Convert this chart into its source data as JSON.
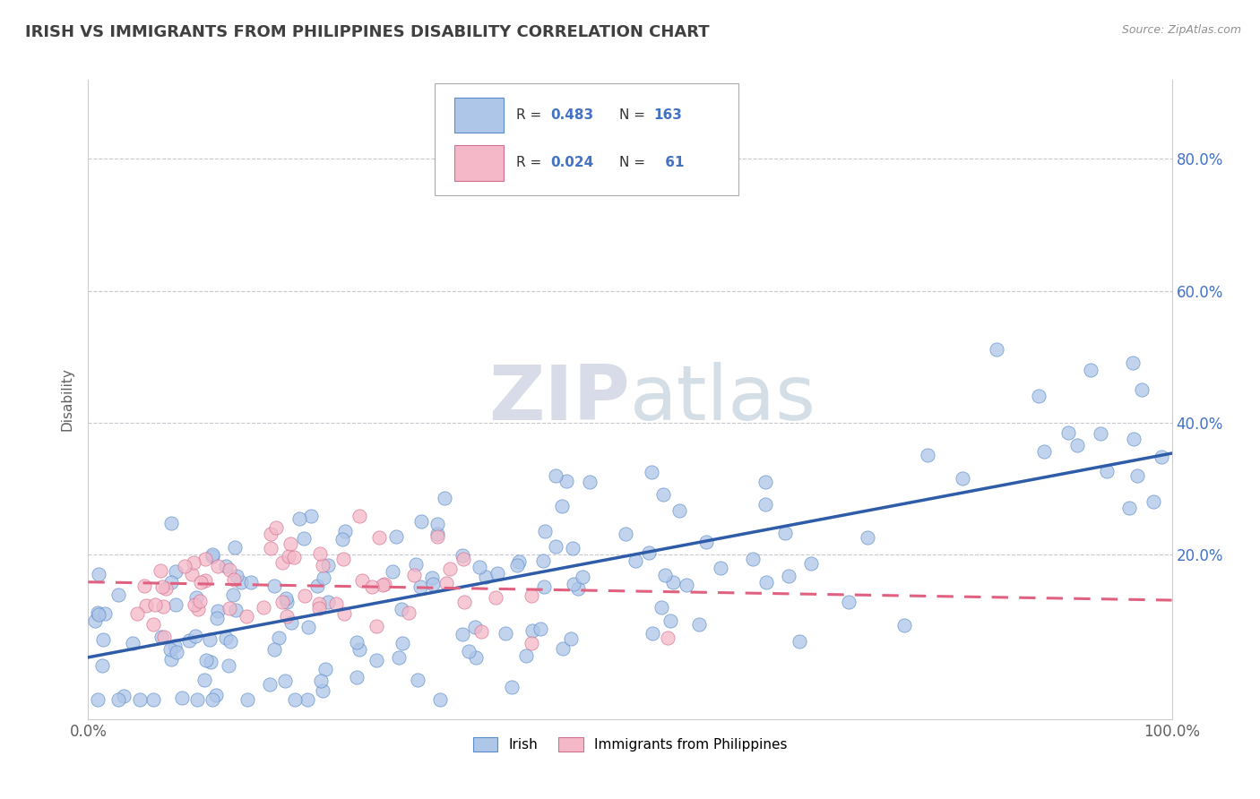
{
  "title": "IRISH VS IMMIGRANTS FROM PHILIPPINES DISABILITY CORRELATION CHART",
  "source": "Source: ZipAtlas.com",
  "ylabel": "Disability",
  "xlim": [
    0,
    1
  ],
  "ylim": [
    -0.05,
    0.92
  ],
  "xticks": [
    0.0,
    0.2,
    0.4,
    0.6,
    0.8,
    1.0
  ],
  "xticklabels": [
    "0.0%",
    "",
    "",
    "",
    "",
    "100.0%"
  ],
  "yticks": [
    0.0,
    0.2,
    0.4,
    0.6,
    0.8
  ],
  "yticklabels_right": [
    "",
    "20.0%",
    "40.0%",
    "60.0%",
    "80.0%"
  ],
  "irish_R": 0.483,
  "irish_N": 163,
  "phil_R": 0.024,
  "phil_N": 61,
  "irish_color": "#aec6e8",
  "irish_edge_color": "#5b8cc8",
  "phil_color": "#f4b8c8",
  "phil_edge_color": "#d07090",
  "irish_line_color": "#2e5ca8",
  "phil_line_color": "#e06080",
  "background_color": "#ffffff",
  "grid_color": "#c8c8d0",
  "watermark_color": "#d8dce8",
  "legend_color": "#4472c4",
  "title_color": "#404040",
  "source_color": "#909090",
  "ylabel_color": "#606060",
  "tick_color": "#606060"
}
